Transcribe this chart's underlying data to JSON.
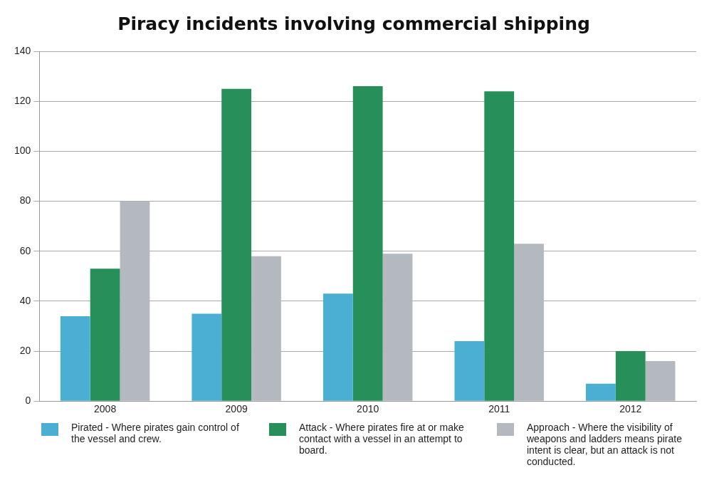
{
  "chart_data": {
    "type": "bar",
    "title": "Piracy incidents involving commercial shipping",
    "categories": [
      "2008",
      "2009",
      "2010",
      "2011",
      "2012"
    ],
    "series": [
      {
        "name": "Pirated - Where pirates gain control of the vessel and crew.",
        "color": "#4bafd3",
        "values": [
          34,
          35,
          43,
          24,
          7
        ]
      },
      {
        "name": "Attack - Where pirates fire at or make contact with a vessel in an attempt to board.",
        "color": "#27905a",
        "values": [
          53,
          125,
          126,
          124,
          20
        ]
      },
      {
        "name": "Approach - Where the visibility of weapons and ladders means pirate intent is clear, but an attack is not conducted.",
        "color": "#b4b9c0",
        "values": [
          80,
          58,
          59,
          63,
          16
        ]
      }
    ],
    "ylim": [
      0,
      140
    ],
    "yticks": [
      0,
      20,
      40,
      60,
      80,
      100,
      120,
      140
    ],
    "grid": "y",
    "legend": "bottom"
  }
}
